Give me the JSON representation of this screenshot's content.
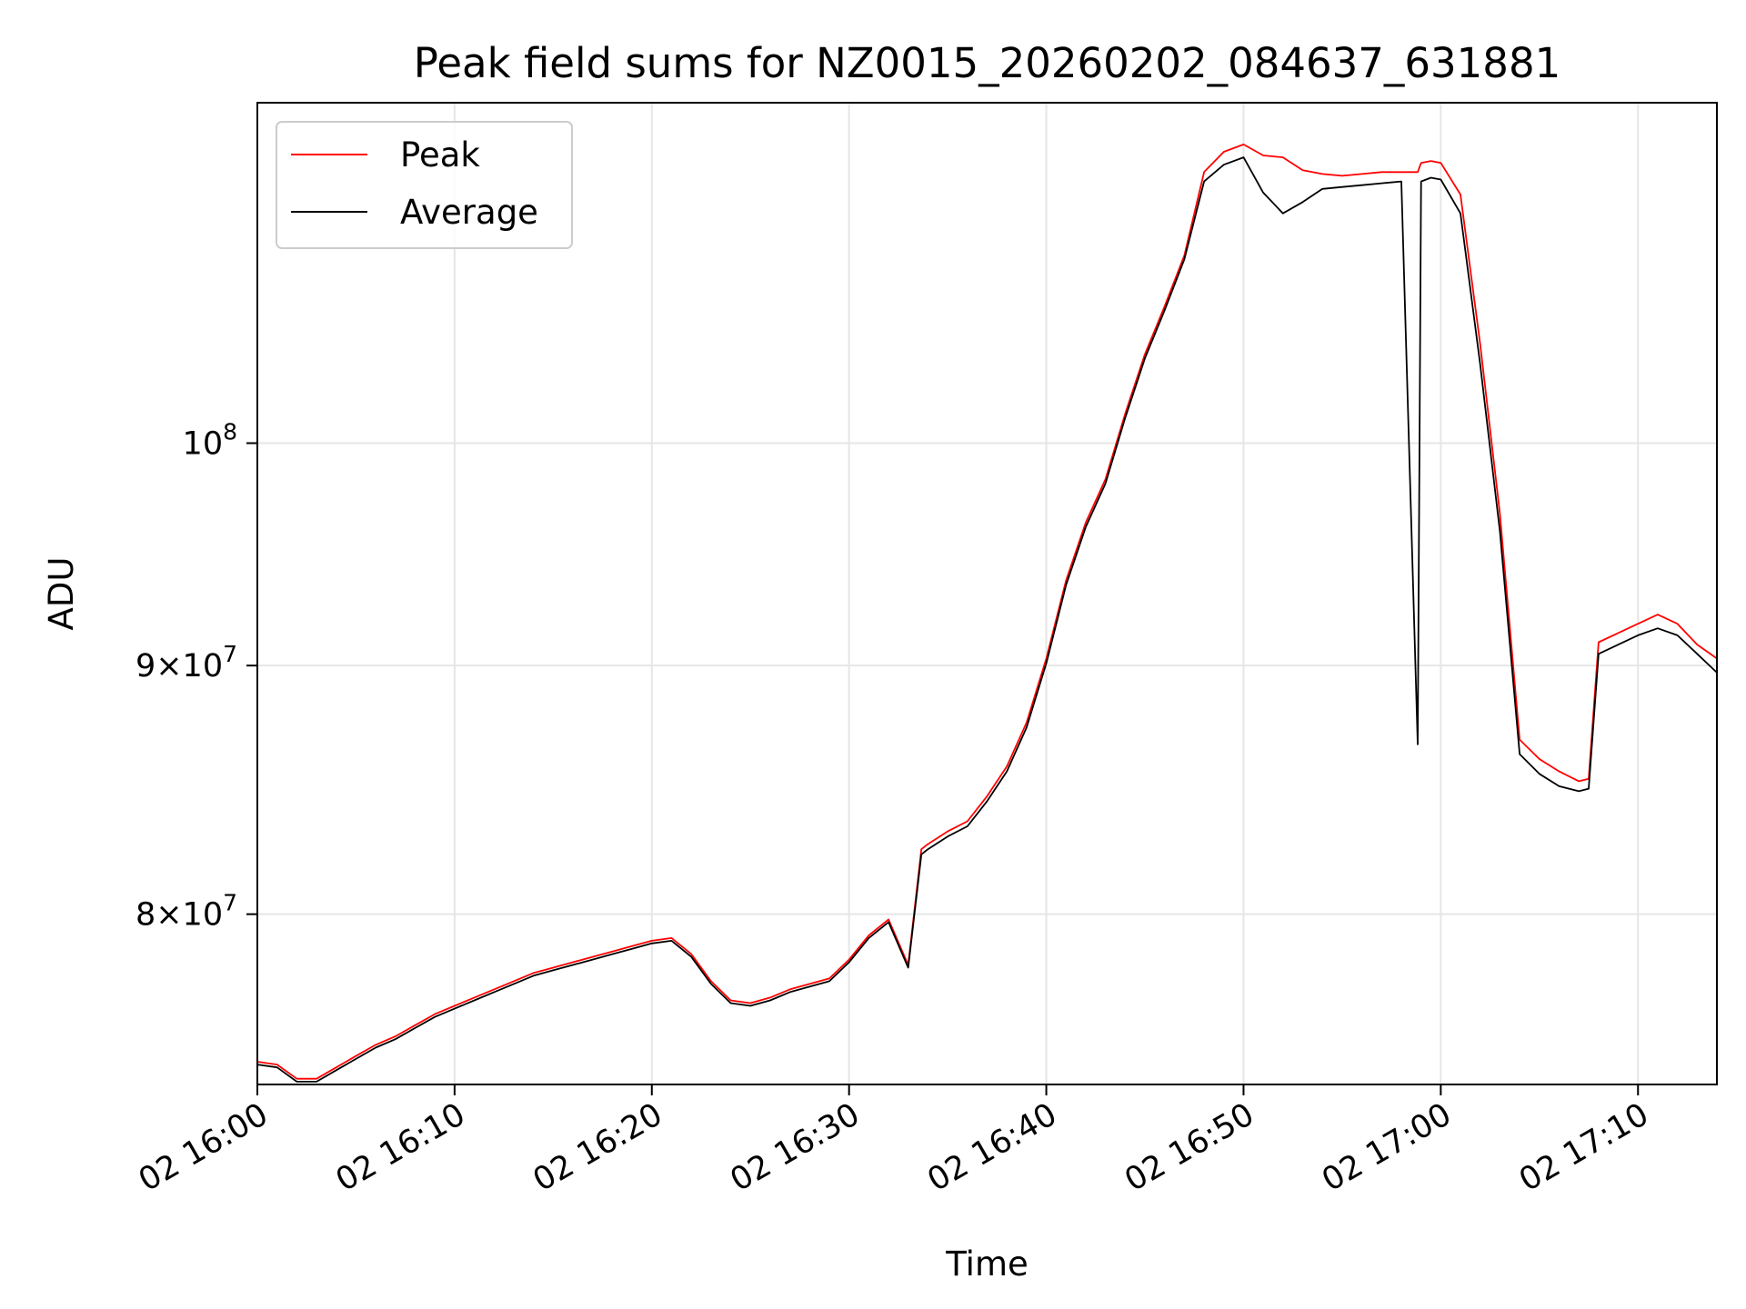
{
  "chart_data": {
    "type": "line",
    "title": "Peak field sums for NZ0015_20260202_084637_631881",
    "xlabel": "Time",
    "ylabel": "ADU",
    "x_unit": "time",
    "xlim": [
      "16:00",
      "17:14"
    ],
    "ylim": [
      73800000,
      117500000
    ],
    "y_scale": "log",
    "grid": true,
    "legend_position": "top-left",
    "x_ticks": [
      "02 16:00",
      "02 16:10",
      "02 16:20",
      "02 16:30",
      "02 16:40",
      "02 16:50",
      "02 17:00",
      "02 17:10"
    ],
    "y_ticks": [
      {
        "value": 80000000,
        "mantissa": "8",
        "base": "10",
        "exp": "7"
      },
      {
        "value": 90000000,
        "mantissa": "9",
        "base": "10",
        "exp": "7"
      },
      {
        "value": 100000000,
        "mantissa": "",
        "base": "10",
        "exp": "8"
      }
    ],
    "times": [
      "16:00",
      "16:01",
      "16:02",
      "16:03",
      "16:04",
      "16:05",
      "16:06",
      "16:07",
      "16:08",
      "16:09",
      "16:10",
      "16:11",
      "16:12",
      "16:13",
      "16:14",
      "16:15",
      "16:16",
      "16:17",
      "16:18",
      "16:19",
      "16:20",
      "16:21",
      "16:22",
      "16:23",
      "16:24",
      "16:25",
      "16:26",
      "16:27",
      "16:28",
      "16:29",
      "16:30",
      "16:31",
      "16:32",
      "16:33",
      "16:33:40",
      "16:34",
      "16:35",
      "16:36",
      "16:37",
      "16:38",
      "16:39",
      "16:40",
      "16:41",
      "16:42",
      "16:43",
      "16:44",
      "16:45",
      "16:46",
      "16:47",
      "16:48",
      "16:49",
      "16:50",
      "16:51",
      "16:52",
      "16:53",
      "16:54",
      "16:55",
      "16:56",
      "16:57",
      "16:58",
      "16:58:50",
      "16:59",
      "16:59:30",
      "17:00",
      "17:01",
      "17:02",
      "17:03",
      "17:04",
      "17:05",
      "17:06",
      "17:07",
      "17:07:30",
      "17:08",
      "17:09",
      "17:10",
      "17:11",
      "17:12",
      "17:13",
      "17:14"
    ],
    "series": [
      {
        "name": "Peak",
        "color": "#ff0000",
        "values": [
          74600000,
          74500000,
          74000000,
          74000000,
          74400000,
          74800000,
          75200000,
          75500000,
          75900000,
          76300000,
          76600000,
          76900000,
          77200000,
          77500000,
          77800000,
          78000000,
          78200000,
          78400000,
          78600000,
          78800000,
          79000000,
          79100000,
          78500000,
          77500000,
          76800000,
          76700000,
          76900000,
          77200000,
          77400000,
          77600000,
          78300000,
          79200000,
          79800000,
          78100000,
          82500000,
          82700000,
          83200000,
          83600000,
          84600000,
          85800000,
          87600000,
          90300000,
          93700000,
          96300000,
          98300000,
          101400000,
          104300000,
          106700000,
          109300000,
          113700000,
          114800000,
          115200000,
          114600000,
          114500000,
          113800000,
          113600000,
          113500000,
          113600000,
          113700000,
          113700000,
          113700000,
          114200000,
          114300000,
          114200000,
          112500000,
          104800000,
          96700000,
          86900000,
          86100000,
          85600000,
          85200000,
          85300000,
          91000000,
          91400000,
          91800000,
          92200000,
          91800000,
          90900000,
          90300000
        ]
      },
      {
        "name": "Average",
        "color": "#000000",
        "values": [
          74500000,
          74400000,
          73900000,
          73900000,
          74300000,
          74700000,
          75100000,
          75400000,
          75800000,
          76200000,
          76500000,
          76800000,
          77100000,
          77400000,
          77700000,
          77900000,
          78100000,
          78300000,
          78500000,
          78700000,
          78900000,
          79000000,
          78400000,
          77400000,
          76700000,
          76600000,
          76800000,
          77100000,
          77300000,
          77500000,
          78200000,
          79100000,
          79700000,
          78000000,
          82300000,
          82500000,
          83000000,
          83400000,
          84400000,
          85600000,
          87400000,
          90100000,
          93500000,
          96100000,
          98100000,
          101200000,
          104100000,
          106500000,
          109100000,
          113200000,
          114100000,
          114500000,
          112600000,
          111500000,
          112100000,
          112800000,
          112900000,
          113000000,
          113100000,
          113200000,
          86700000,
          113200000,
          113400000,
          113300000,
          111500000,
          103800000,
          95900000,
          86300000,
          85500000,
          85000000,
          84800000,
          84900000,
          90500000,
          90900000,
          91300000,
          91600000,
          91300000,
          90500000,
          89700000
        ]
      }
    ]
  }
}
